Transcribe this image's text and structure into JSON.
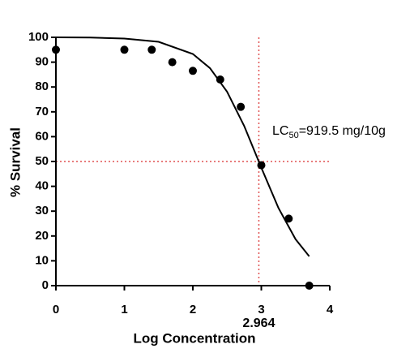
{
  "chart_data": {
    "type": "scatter",
    "x_label": "Log Concentration",
    "y_label": "% Survival",
    "xlim": [
      0,
      4
    ],
    "ylim": [
      0,
      100
    ],
    "xticks": [
      0,
      1,
      2,
      3,
      4
    ],
    "yticks": [
      0,
      10,
      20,
      30,
      40,
      50,
      60,
      70,
      80,
      90,
      100
    ],
    "points": {
      "x": [
        0,
        1,
        1.4,
        1.7,
        2,
        2.4,
        2.7,
        3,
        3.4,
        3.7
      ],
      "values": [
        95,
        95,
        95,
        90,
        86.5,
        83,
        72,
        48.5,
        27,
        0
      ],
      "color": "#000000"
    },
    "curve": {
      "x": [
        0,
        0.5,
        1,
        1.5,
        2,
        2.25,
        2.5,
        2.75,
        3,
        3.25,
        3.5,
        3.7
      ],
      "values": [
        100,
        99.9,
        99.5,
        98.2,
        93.3,
        87.6,
        78.1,
        64.3,
        47.5,
        31.3,
        18.7,
        11.8
      ],
      "color": "#000000"
    },
    "hline": 50,
    "vline": {
      "value": 2.964,
      "label": "2.964"
    },
    "ref_color": "#e05050",
    "annotation": {
      "prefix": "LC",
      "subscript": "50",
      "suffix": "=919.5 mg/10g"
    }
  }
}
